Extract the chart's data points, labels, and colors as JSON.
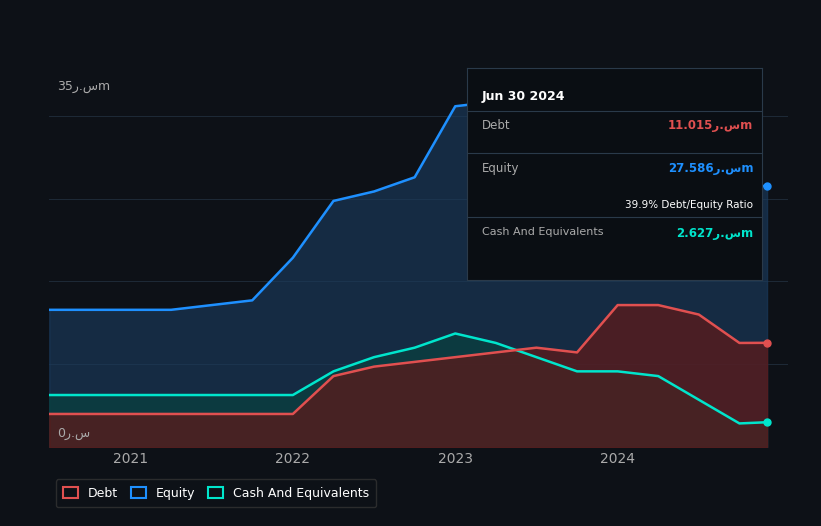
{
  "background_color": "#0d1117",
  "plot_bg_color": "#0d1117",
  "ylabel_top": "35ر.سm",
  "ylabel_bottom": "0ر.س",
  "x_ticks": [
    2021,
    2022,
    2023,
    2024
  ],
  "ylim": [
    0,
    40
  ],
  "grid_color": "#1e2a38",
  "grid_y": [
    0,
    8.75,
    17.5,
    26.25,
    35
  ],
  "equity_color": "#1e90ff",
  "equity_fill": "#1a3a5c",
  "debt_color": "#e05050",
  "debt_fill": "#5c1a1a",
  "cash_color": "#00e5cc",
  "cash_fill": "#0a4040",
  "equity_x": [
    2020.5,
    2021.0,
    2021.25,
    2021.75,
    2022.0,
    2022.25,
    2022.5,
    2022.75,
    2023.0,
    2023.25,
    2023.5,
    2023.75,
    2024.0,
    2024.25,
    2024.5,
    2024.75,
    2024.92
  ],
  "equity_y": [
    14.5,
    14.5,
    14.5,
    15.5,
    20.0,
    26.0,
    27.0,
    28.5,
    36.0,
    36.5,
    35.5,
    30.0,
    30.0,
    29.5,
    28.5,
    27.5,
    27.586
  ],
  "debt_x": [
    2020.5,
    2021.0,
    2021.25,
    2021.5,
    2021.75,
    2022.0,
    2022.25,
    2022.5,
    2022.75,
    2023.0,
    2023.25,
    2023.5,
    2023.75,
    2024.0,
    2024.25,
    2024.5,
    2024.75,
    2024.92
  ],
  "debt_y": [
    3.5,
    3.5,
    3.5,
    3.5,
    3.5,
    3.5,
    7.5,
    8.5,
    9.0,
    9.5,
    10.0,
    10.5,
    10.0,
    15.0,
    15.0,
    14.0,
    11.0,
    11.015
  ],
  "cash_x": [
    2020.5,
    2021.0,
    2021.25,
    2021.5,
    2021.75,
    2022.0,
    2022.25,
    2022.5,
    2022.75,
    2023.0,
    2023.25,
    2023.5,
    2023.75,
    2024.0,
    2024.25,
    2024.5,
    2024.75,
    2024.92
  ],
  "cash_y": [
    5.5,
    5.5,
    5.5,
    5.5,
    5.5,
    5.5,
    8.0,
    9.5,
    10.5,
    12.0,
    11.0,
    9.5,
    8.0,
    8.0,
    7.5,
    5.0,
    2.5,
    2.627
  ],
  "tooltip_title": "Jun 30 2024",
  "tooltip_bg": "#0a0e13",
  "tooltip_border": "#2a3a4a",
  "debt_label_color": "#e05050",
  "equity_label_color": "#1e90ff",
  "cash_label_color": "#00e5cc",
  "tooltip_debt_value": "11.015ر.سm",
  "tooltip_equity_value": "27.586ر.سm",
  "tooltip_ratio_text": "39.9% Debt/Equity Ratio",
  "tooltip_cash_value": "2.627ر.سm",
  "legend_items": [
    "Debt",
    "Equity",
    "Cash And Equivalents"
  ],
  "legend_colors": [
    "#e05050",
    "#1e90ff",
    "#00e5cc"
  ]
}
